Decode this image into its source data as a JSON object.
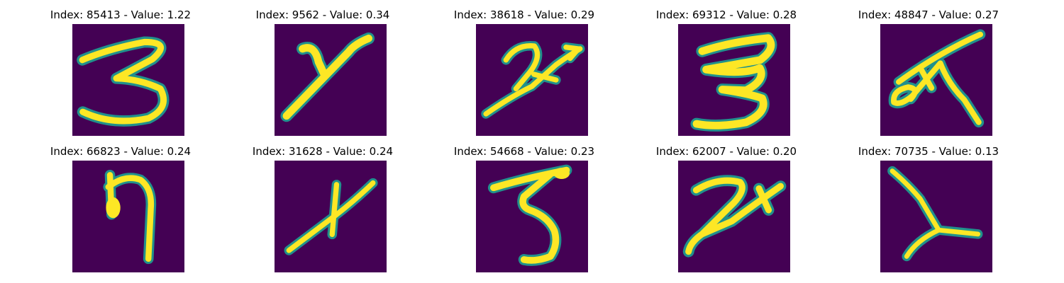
{
  "panels": [
    {
      "title": "Index: 85413 - Value: 1.22",
      "glyph": "3",
      "image": "handwritten-digit-3"
    },
    {
      "title": "Index: 9562 - Value: 0.34",
      "glyph": "y",
      "image": "handwritten-y"
    },
    {
      "title": "Index: 38618 - Value: 0.29",
      "glyph": "2",
      "image": "handwritten-2-with-arrow"
    },
    {
      "title": "Index: 69312 - Value: 0.28",
      "glyph": "3",
      "image": "handwritten-digit-3"
    },
    {
      "title": "Index: 48847 - Value: 0.27",
      "glyph": "ᚷ",
      "image": "handwritten-crossed-shape"
    },
    {
      "title": "Index: 66823 - Value: 0.24",
      "glyph": "η",
      "image": "handwritten-eta"
    },
    {
      "title": "Index: 31628 - Value: 0.24",
      "glyph": "x",
      "image": "handwritten-x"
    },
    {
      "title": "Index: 54668 - Value: 0.23",
      "glyph": "3",
      "image": "handwritten-digit-3"
    },
    {
      "title": "Index: 62007 - Value: 0.20",
      "glyph": "2",
      "image": "handwritten-2-with-stroke"
    },
    {
      "title": "Index: 70735 - Value: 0.13",
      "glyph": "λ",
      "image": "handwritten-lambda"
    }
  ],
  "colors": {
    "background": "#440154",
    "stroke_core": "#fde725",
    "stroke_edge": "#21918c"
  }
}
